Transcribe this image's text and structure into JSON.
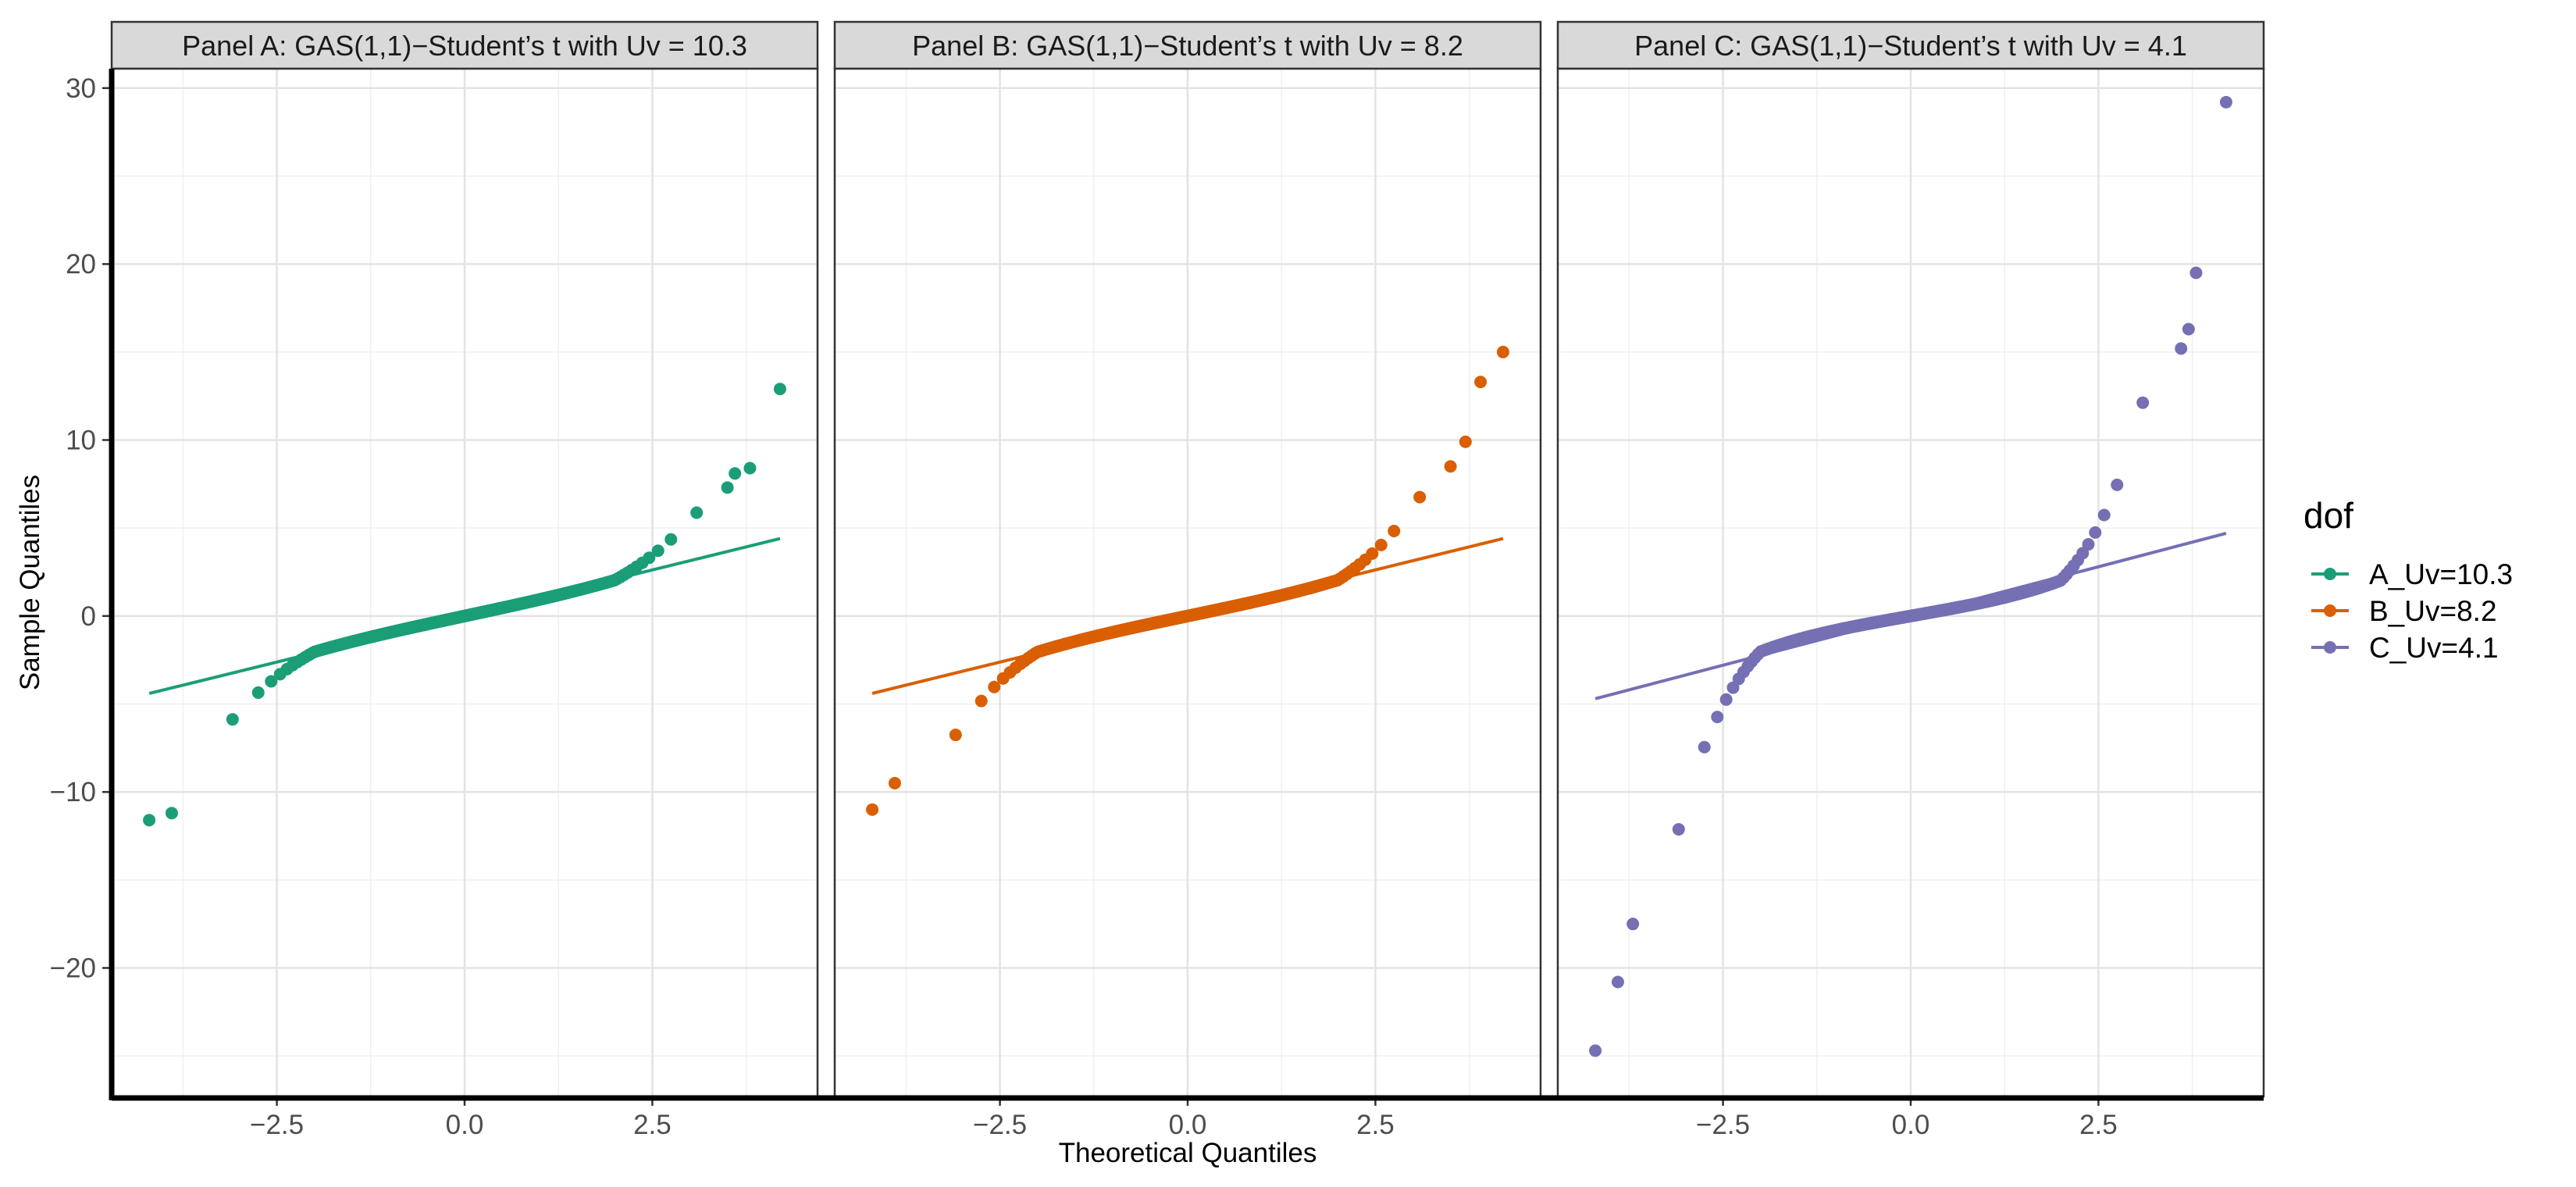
{
  "chart_data": {
    "type": "scatter",
    "subtype": "qq-plot",
    "xlabel": "Theoretical Quantiles",
    "ylabel": "Sample Quantiles",
    "x_ticks": [
      -2.5,
      0.0,
      2.5
    ],
    "x_tick_labels": [
      "−2.5",
      "0.0",
      "2.5"
    ],
    "y_ticks": [
      -20,
      -10,
      0,
      10,
      20,
      30
    ],
    "y_tick_labels": [
      "−20",
      "−10",
      "0",
      "10",
      "20",
      "30"
    ],
    "xlim": [
      -4.7,
      4.7
    ],
    "ylim": [
      -27.3,
      31.1
    ],
    "grid": true,
    "legend": {
      "title": "dof",
      "position": "right",
      "entries": [
        "A_Uv=10.3",
        "B_Uv=8.2",
        "C_Uv=4.1"
      ]
    },
    "panels": [
      {
        "title": "Panel A: GAS(1,1)−Student’s t with Uv = 10.3",
        "series_name": "A_Uv=10.3",
        "color": "#1B9E77",
        "df": 10.3,
        "n_points": 500,
        "ref_line": {
          "x": [
            -4.2,
            4.2
          ],
          "y": [
            -4.4,
            4.4
          ]
        },
        "extremes": [
          [
            -4.2,
            -11.6
          ],
          [
            -3.9,
            -11.2
          ],
          [
            3.5,
            7.3
          ],
          [
            3.6,
            8.1
          ],
          [
            3.8,
            8.4
          ],
          [
            4.2,
            12.9
          ]
        ]
      },
      {
        "title": "Panel B: GAS(1,1)−Student’s t with Uv = 8.2",
        "series_name": "B_Uv=8.2",
        "color": "#D95F02",
        "df": 8.2,
        "n_points": 500,
        "ref_line": {
          "x": [
            -4.2,
            4.2
          ],
          "y": [
            -4.4,
            4.4
          ]
        },
        "extremes": [
          [
            -4.2,
            -11.0
          ],
          [
            -3.9,
            -9.5
          ],
          [
            3.5,
            8.5
          ],
          [
            3.7,
            9.9
          ],
          [
            3.9,
            13.3
          ],
          [
            4.2,
            15.0
          ]
        ]
      },
      {
        "title": "Panel C: GAS(1,1)−Student’s t with Uv = 4.1",
        "series_name": "C_Uv=4.1",
        "color": "#7570B3",
        "df": 4.1,
        "n_points": 500,
        "ref_line": {
          "x": [
            -4.2,
            4.2
          ],
          "y": [
            -4.7,
            4.7
          ]
        },
        "extremes": [
          [
            -4.2,
            -24.7
          ],
          [
            -3.9,
            -20.8
          ],
          [
            -3.7,
            -17.5
          ],
          [
            3.6,
            15.2
          ],
          [
            3.7,
            16.3
          ],
          [
            3.8,
            19.5
          ],
          [
            4.2,
            29.2
          ]
        ]
      }
    ]
  }
}
